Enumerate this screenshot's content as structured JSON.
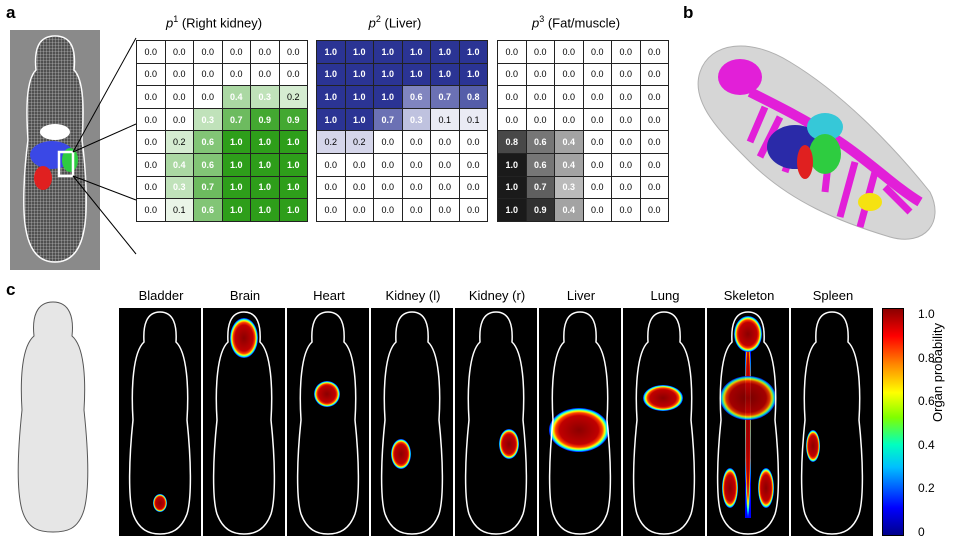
{
  "panels": {
    "a": "a",
    "b": "b",
    "c": "c"
  },
  "grids": [
    {
      "sup": "1",
      "title": " (Right kidney)",
      "values": [
        [
          "0.0",
          "0.0",
          "0.0",
          "0.0",
          "0.0",
          "0.0"
        ],
        [
          "0.0",
          "0.0",
          "0.0",
          "0.0",
          "0.0",
          "0.0"
        ],
        [
          "0.0",
          "0.0",
          "0.0",
          "0.4",
          "0.3",
          "0.2"
        ],
        [
          "0.0",
          "0.0",
          "0.3",
          "0.7",
          "0.9",
          "0.9"
        ],
        [
          "0.0",
          "0.2",
          "0.6",
          "1.0",
          "1.0",
          "1.0"
        ],
        [
          "0.0",
          "0.4",
          "0.6",
          "1.0",
          "1.0",
          "1.0"
        ],
        [
          "0.0",
          "0.3",
          "0.7",
          "1.0",
          "1.0",
          "1.0"
        ],
        [
          "0.0",
          "0.1",
          "0.6",
          "1.0",
          "1.0",
          "1.0"
        ]
      ],
      "color": "#2e9e1a"
    },
    {
      "sup": "2",
      "title": " (Liver)",
      "values": [
        [
          "1.0",
          "1.0",
          "1.0",
          "1.0",
          "1.0",
          "1.0"
        ],
        [
          "1.0",
          "1.0",
          "1.0",
          "1.0",
          "1.0",
          "1.0"
        ],
        [
          "1.0",
          "1.0",
          "1.0",
          "0.6",
          "0.7",
          "0.8"
        ],
        [
          "1.0",
          "1.0",
          "0.7",
          "0.3",
          "0.1",
          "0.1"
        ],
        [
          "0.2",
          "0.2",
          "0.0",
          "0.0",
          "0.0",
          "0.0"
        ],
        [
          "0.0",
          "0.0",
          "0.0",
          "0.0",
          "0.0",
          "0.0"
        ],
        [
          "0.0",
          "0.0",
          "0.0",
          "0.0",
          "0.0",
          "0.0"
        ],
        [
          "0.0",
          "0.0",
          "0.0",
          "0.0",
          "0.0",
          "0.0"
        ]
      ],
      "color": "#2b3494"
    },
    {
      "sup": "3",
      "title": " (Fat/muscle)",
      "values": [
        [
          "0.0",
          "0.0",
          "0.0",
          "0.0",
          "0.0",
          "0.0"
        ],
        [
          "0.0",
          "0.0",
          "0.0",
          "0.0",
          "0.0",
          "0.0"
        ],
        [
          "0.0",
          "0.0",
          "0.0",
          "0.0",
          "0.0",
          "0.0"
        ],
        [
          "0.0",
          "0.0",
          "0.0",
          "0.0",
          "0.0",
          "0.0"
        ],
        [
          "0.8",
          "0.6",
          "0.4",
          "0.0",
          "0.0",
          "0.0"
        ],
        [
          "1.0",
          "0.6",
          "0.4",
          "0.0",
          "0.0",
          "0.0"
        ],
        [
          "1.0",
          "0.7",
          "0.3",
          "0.0",
          "0.0",
          "0.0"
        ],
        [
          "1.0",
          "0.9",
          "0.4",
          "0.0",
          "0.0",
          "0.0"
        ]
      ],
      "color": "#1a1a1a"
    }
  ],
  "p_letter": "p",
  "organs": [
    "Bladder",
    "Brain",
    "Heart",
    "Kidney (l)",
    "Kidney (r)",
    "Liver",
    "Lung",
    "Skeleton",
    "Spleen"
  ],
  "colorbar": {
    "ticks": [
      "1.0",
      "0.8",
      "0.6",
      "0.4",
      "0.2",
      "0"
    ],
    "label": "Organ probability"
  }
}
